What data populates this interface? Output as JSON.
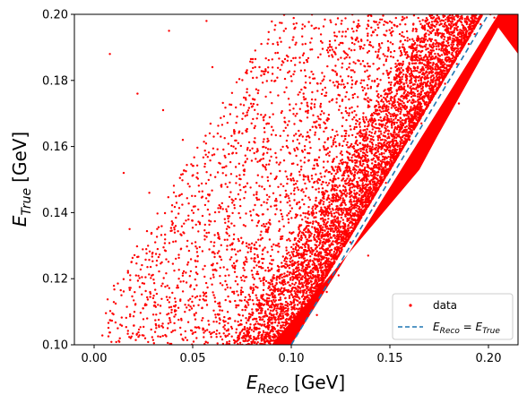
{
  "chart_data": {
    "type": "scatter",
    "title": "",
    "xlabel": {
      "var": "E",
      "sub": "Reco",
      "unit": "[GeV]"
    },
    "ylabel": {
      "var": "E",
      "sub": "True",
      "unit": "[GeV]"
    },
    "xlim": [
      -0.01,
      0.215
    ],
    "ylim": [
      0.1,
      0.2
    ],
    "xticks": [
      0.0,
      0.05,
      0.1,
      0.15,
      0.2
    ],
    "xtick_labels": [
      "0.00",
      "0.05",
      "0.10",
      "0.15",
      "0.20"
    ],
    "yticks": [
      0.1,
      0.12,
      0.14,
      0.16,
      0.18,
      0.2
    ],
    "ytick_labels": [
      "0.10",
      "0.12",
      "0.14",
      "0.16",
      "0.18",
      "0.20"
    ],
    "grid": false,
    "legend": {
      "placement": "lower-right",
      "entries": [
        {
          "label": "data",
          "marker": "dot",
          "color": "#ff0000"
        },
        {
          "label_parts": {
            "lhs_var": "E",
            "lhs_sub": "Reco",
            "op": " = ",
            "rhs_var": "E",
            "rhs_sub": "True"
          },
          "marker": "dashed-line",
          "color": "#1f77b4"
        }
      ]
    },
    "series": [
      {
        "name": "data",
        "kind": "scatter",
        "color": "#ff0000",
        "x": [
          0.008,
          0.015,
          0.022,
          0.031,
          0.038,
          0.045,
          0.052,
          0.06,
          0.067,
          0.073,
          0.08,
          0.086,
          0.092,
          0.097,
          0.102,
          0.108,
          0.113,
          0.118,
          0.124,
          0.13,
          0.136,
          0.142,
          0.148,
          0.154,
          0.16,
          0.166,
          0.172,
          0.178,
          0.184,
          0.19,
          0.196,
          0.201,
          0.206,
          0.012,
          0.028,
          0.041,
          0.057,
          0.071,
          0.089,
          0.105,
          0.121,
          0.139,
          0.157,
          0.175,
          0.193,
          0.018,
          0.035,
          0.055,
          0.078,
          0.099,
          0.118,
          0.141,
          0.163,
          0.185,
          0.203
        ],
        "y": [
          0.188,
          0.152,
          0.176,
          0.131,
          0.195,
          0.162,
          0.118,
          0.184,
          0.141,
          0.107,
          0.172,
          0.126,
          0.158,
          0.112,
          0.196,
          0.137,
          0.109,
          0.168,
          0.121,
          0.131,
          0.178,
          0.142,
          0.149,
          0.186,
          0.162,
          0.167,
          0.191,
          0.179,
          0.185,
          0.191,
          0.197,
          0.2,
          0.199,
          0.105,
          0.146,
          0.114,
          0.198,
          0.165,
          0.102,
          0.153,
          0.148,
          0.127,
          0.19,
          0.181,
          0.194,
          0.135,
          0.171,
          0.139,
          0.128,
          0.103,
          0.116,
          0.144,
          0.158,
          0.173,
          0.199
        ]
      },
      {
        "name": "E_Reco = E_True",
        "kind": "line",
        "style": "dashed",
        "color": "#1f77b4",
        "x": [
          0.1,
          0.2
        ],
        "y": [
          0.1,
          0.2
        ]
      }
    ]
  }
}
